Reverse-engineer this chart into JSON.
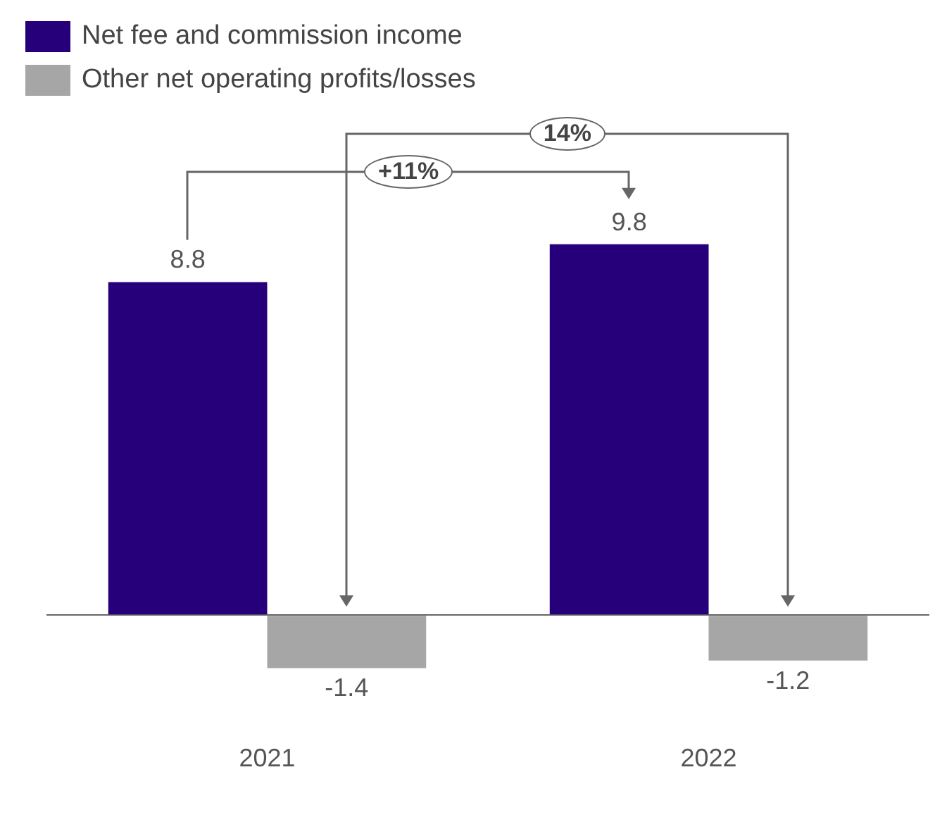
{
  "chart_data": {
    "type": "bar",
    "categories": [
      "2021",
      "2022"
    ],
    "series": [
      {
        "name": "Net fee and commission income",
        "color": "#25007a",
        "values": [
          8.8,
          9.8
        ]
      },
      {
        "name": "Other net operating profits/losses",
        "color": "#a6a6a6",
        "values": [
          -1.4,
          -1.2
        ]
      }
    ],
    "data_labels": true,
    "legend": "top left",
    "annotations": [
      "+11%",
      "14%"
    ]
  }
}
